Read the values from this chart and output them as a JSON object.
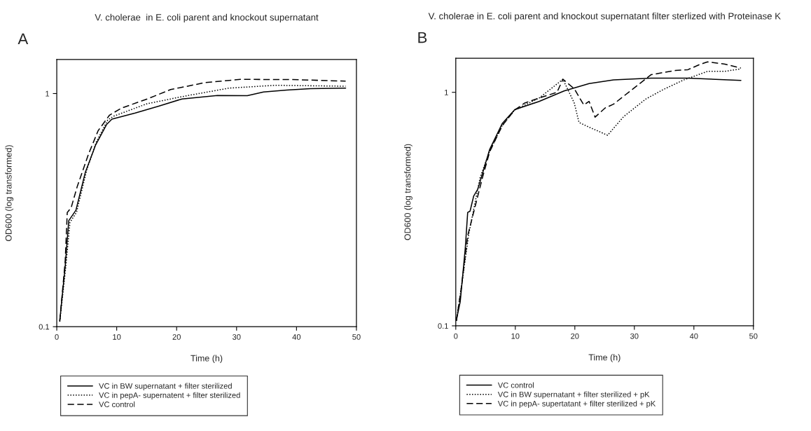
{
  "chart_data": [
    {
      "type": "line",
      "title": "V. cholerae  in E. coli parent and knockout supernatant",
      "xlabel": "Time (h)",
      "ylabel": "OD600 (log transformed)",
      "annotations": [
        "A"
      ],
      "log": "y",
      "xlim": [
        0,
        50
      ],
      "ylim": [
        0.1,
        1.4
      ],
      "xticks": [
        0,
        10,
        20,
        30,
        40,
        50
      ],
      "yticks": [
        {
          "value": 0.1,
          "label": "0.1"
        },
        1
      ],
      "grid": false,
      "legend": "bottom",
      "series": [
        {
          "name": "VC in BW supernatant + filter sterilized",
          "color": "#000000",
          "line_style": "solid",
          "x": [
            0.5,
            1.4,
            2.0,
            3.2,
            4.75,
            6.5,
            8.3,
            9.2,
            13.1,
            17.0,
            20.9,
            26.8,
            31.8,
            34.5,
            38.4,
            42.3,
            48.2
          ],
          "values": [
            0.106,
            0.181,
            0.285,
            0.316,
            0.458,
            0.603,
            0.736,
            0.777,
            0.825,
            0.883,
            0.948,
            0.981,
            0.98,
            1.016,
            1.035,
            1.05,
            1.055
          ]
        },
        {
          "name": "VC in pepA- supernatent + filter sterilized",
          "color": "#000000",
          "line_style": "dotted",
          "x": [
            0.5,
            1.5,
            2.2,
            3.3,
            5.0,
            6.6,
            8.5,
            9.5,
            15.1,
            20.9,
            28.7,
            36.5,
            48.2
          ],
          "values": [
            0.105,
            0.18,
            0.28,
            0.31,
            0.47,
            0.62,
            0.77,
            0.8,
            0.905,
            0.97,
            1.055,
            1.085,
            1.075
          ]
        },
        {
          "name": "VC control",
          "color": "#000000",
          "line_style": "dashed",
          "x": [
            0.5,
            1.4,
            1.75,
            2.4,
            3.4,
            5.3,
            6.9,
            8.8,
            10.8,
            15.1,
            19.0,
            24.8,
            30.6,
            39.4,
            48.2
          ],
          "values": [
            0.106,
            0.19,
            0.309,
            0.324,
            0.398,
            0.55,
            0.693,
            0.808,
            0.866,
            0.948,
            1.04,
            1.115,
            1.15,
            1.148,
            1.13
          ]
        }
      ]
    },
    {
      "type": "line",
      "title": "V. cholerae in E. coli parent and knockout supernatant filter sterlized with Proteinase K",
      "xlabel": "Time (h)",
      "ylabel": "OD600 (log transformed)",
      "annotations": [
        "B"
      ],
      "log": "y",
      "xlim": [
        0,
        50
      ],
      "ylim": [
        0.1,
        1.4
      ],
      "xticks": [
        0,
        10,
        20,
        30,
        40,
        50
      ],
      "yticks": [
        {
          "value": 0.1,
          "label": "0.1"
        },
        1
      ],
      "grid": false,
      "legend": "bottom",
      "series": [
        {
          "name": "VC control",
          "color": "#000000",
          "line_style": "solid",
          "x": [
            0.1,
            0.75,
            1.6,
            2.0,
            2.4,
            3.0,
            3.7,
            5.7,
            7.8,
            9.9,
            14.0,
            18.2,
            22.4,
            26.5,
            32.8,
            39.0,
            47.9
          ],
          "values": [
            0.106,
            0.127,
            0.216,
            0.306,
            0.31,
            0.359,
            0.385,
            0.57,
            0.735,
            0.843,
            0.914,
            1.014,
            1.09,
            1.13,
            1.15,
            1.15,
            1.125
          ]
        },
        {
          "name": "VC in BW supernatant + filter sterilized + pK",
          "color": "#000000",
          "line_style": "dotted",
          "x": [
            0.1,
            1.0,
            2.2,
            4.1,
            5.7,
            7.8,
            9.9,
            14.0,
            18.0,
            19.9,
            20.7,
            22.4,
            25.5,
            28.2,
            31.9,
            34.8,
            38.2,
            42.3,
            45.2,
            47.9
          ],
          "values": [
            0.105,
            0.15,
            0.249,
            0.433,
            0.56,
            0.72,
            0.84,
            0.945,
            1.137,
            0.9,
            0.743,
            0.709,
            0.655,
            0.787,
            0.935,
            1.026,
            1.127,
            1.23,
            1.23,
            1.26
          ]
        },
        {
          "name": "VC in pepA- supertatant + filter sterilized + pK",
          "color": "#000000",
          "line_style": "dashed",
          "x": [
            0.1,
            1.0,
            2.0,
            4.5,
            5.7,
            7.8,
            9.9,
            11.6,
            14.0,
            17.0,
            18.0,
            19.9,
            21.5,
            22.4,
            23.4,
            25.1,
            26.5,
            29.8,
            32.8,
            36.9,
            39.0,
            41.1,
            42.3,
            45.2,
            47.9
          ],
          "values": [
            0.105,
            0.15,
            0.243,
            0.433,
            0.557,
            0.72,
            0.84,
            0.9,
            0.945,
            1.0,
            1.137,
            1.036,
            0.883,
            0.914,
            0.783,
            0.857,
            0.89,
            1.036,
            1.19,
            1.24,
            1.25,
            1.32,
            1.35,
            1.32,
            1.27
          ]
        }
      ]
    }
  ]
}
